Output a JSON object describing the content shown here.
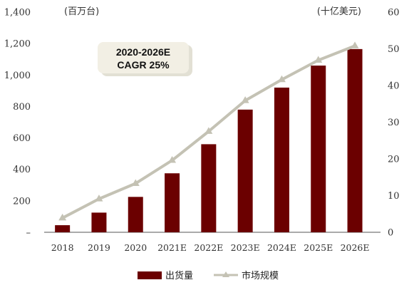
{
  "chart_data": {
    "type": "bar",
    "categories": [
      "2018",
      "2019",
      "2020",
      "2021E",
      "2022E",
      "2023E",
      "2024E",
      "2025E",
      "2026E"
    ],
    "series": [
      {
        "name": "出货量",
        "type": "bar",
        "axis": "left",
        "values": [
          45,
          125,
          225,
          375,
          560,
          780,
          920,
          1060,
          1165
        ]
      },
      {
        "name": "市场规模",
        "type": "line",
        "axis": "right",
        "values": [
          3.9,
          9.1,
          13.3,
          19.6,
          27.5,
          35.9,
          41.6,
          46.9,
          50.8
        ]
      }
    ],
    "left_axis": {
      "unit": "(百万台)",
      "ylim": [
        0,
        1400
      ],
      "ticks": [
        "–",
        "200",
        "400",
        "600",
        "800",
        "1,000",
        "1,200",
        "1,400"
      ]
    },
    "right_axis": {
      "unit": "(十亿美元)",
      "ylim": [
        0,
        60
      ],
      "ticks": [
        "0",
        "10",
        "20",
        "30",
        "40",
        "50",
        "60"
      ]
    },
    "annotation": {
      "line1": "2020-2026E",
      "line2": "CAGR  25%"
    },
    "legend": {
      "placement": "bottom"
    },
    "colors": {
      "bar": "#6b0000",
      "line": "#c4c2b4",
      "callout_bg": "#f2efe4"
    },
    "grid": false
  }
}
